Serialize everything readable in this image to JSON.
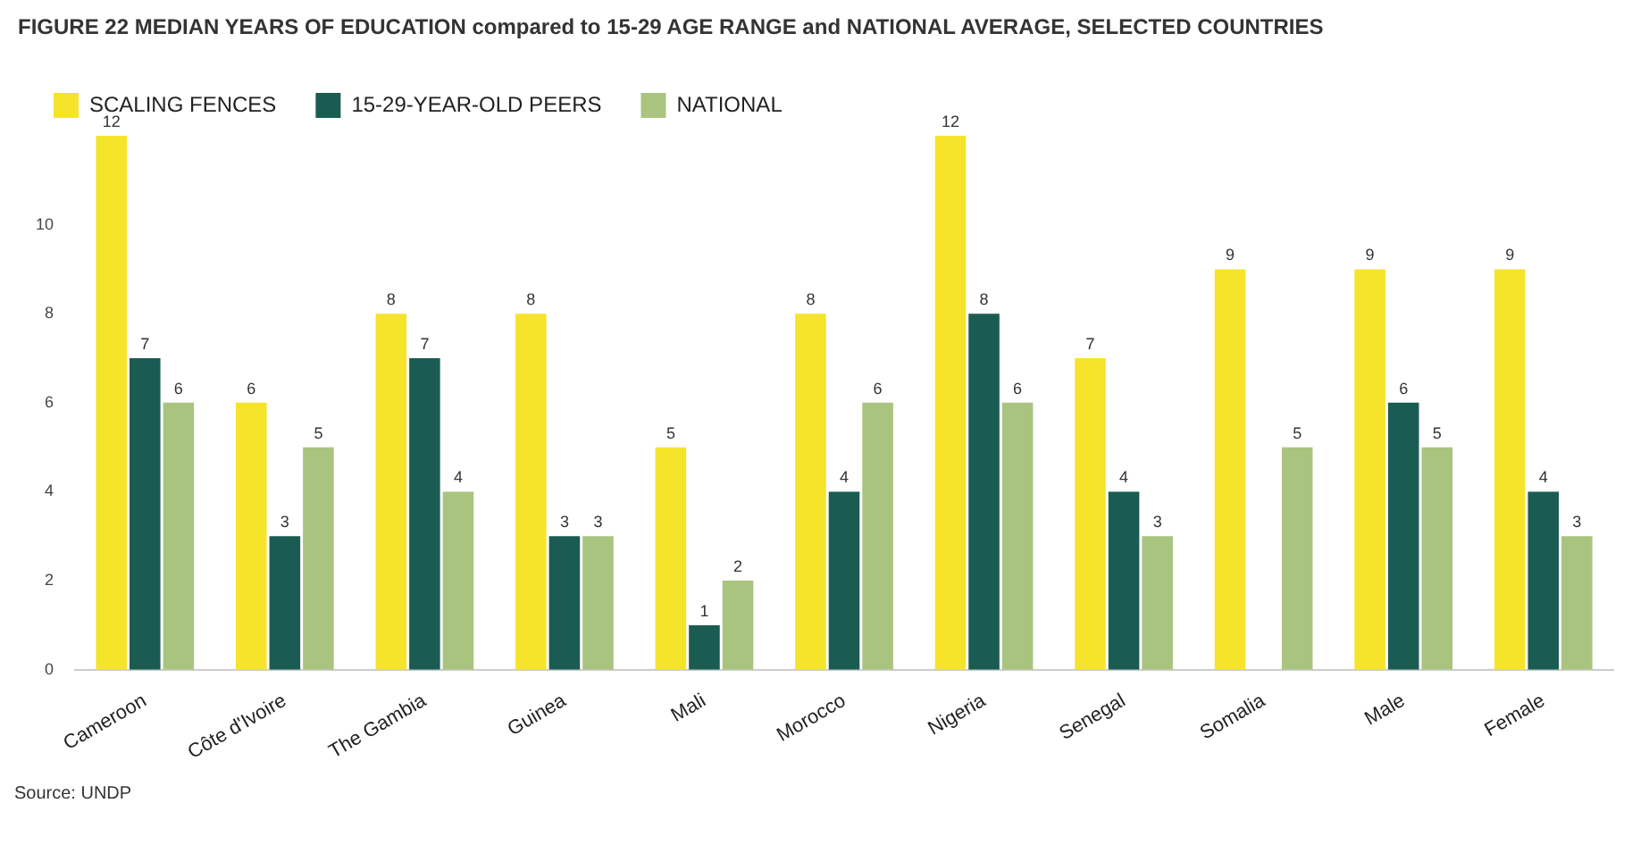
{
  "chart_data": {
    "type": "bar",
    "title": "FIGURE 22  MEDIAN YEARS OF EDUCATION compared to 15-29 AGE RANGE and NATIONAL AVERAGE, SELECTED COUNTRIES",
    "categories": [
      "Cameroon",
      "Côte d'Ivoire",
      "The Gambia",
      "Guinea",
      "Mali",
      "Morocco",
      "Nigeria",
      "Senegal",
      "Somalia",
      "Male",
      "Female"
    ],
    "series": [
      {
        "name": "SCALING FENCES",
        "color": "#f5e42a",
        "values": [
          12,
          6,
          8,
          8,
          5,
          8,
          12,
          7,
          9,
          9,
          9
        ]
      },
      {
        "name": "15-29-YEAR-OLD PEERS",
        "color": "#1b5c52",
        "values": [
          7,
          3,
          7,
          3,
          1,
          4,
          8,
          4,
          null,
          6,
          4
        ]
      },
      {
        "name": "NATIONAL",
        "color": "#a9c47f",
        "values": [
          6,
          5,
          4,
          3,
          2,
          6,
          6,
          3,
          5,
          5,
          3
        ]
      }
    ],
    "ylim": [
      0,
      12
    ],
    "yticks": [
      0,
      2,
      4,
      6,
      8,
      10
    ],
    "grid": false,
    "legend": "top left",
    "data_labels": true,
    "annotations": [
      "Source: UNDP"
    ]
  }
}
